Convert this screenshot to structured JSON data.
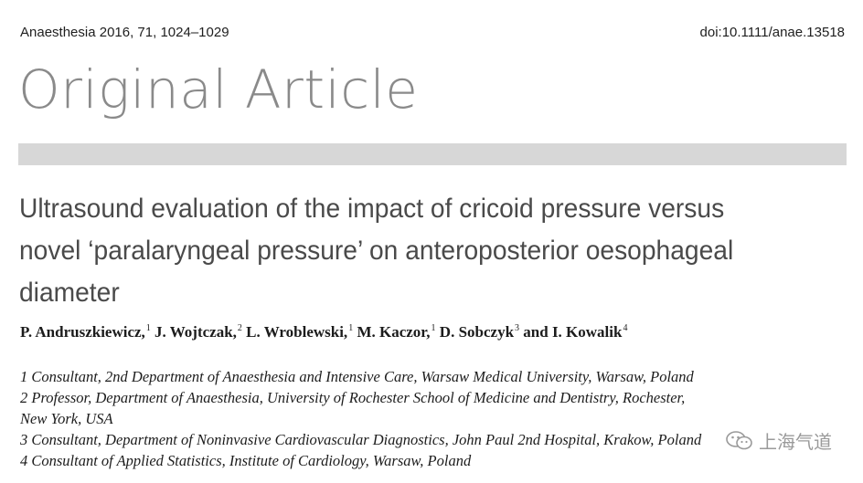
{
  "header": {
    "citation": "Anaesthesia 2016, 71, 1024–1029",
    "doi": "doi:10.1111/anae.13518"
  },
  "section_label": "Original Article",
  "title_lines": [
    "Ultrasound evaluation of the impact of cricoid pressure versus",
    "novel ‘paralaryngeal pressure’ on anteroposterior oesophageal",
    "diameter"
  ],
  "authors": [
    {
      "name": "P. Andruszkiewicz,",
      "sup": "1"
    },
    {
      "name": "J. Wojtczak,",
      "sup": "2"
    },
    {
      "name": "L. Wroblewski,",
      "sup": "1"
    },
    {
      "name": "M. Kaczor,",
      "sup": "1"
    },
    {
      "name": "D. Sobczyk",
      "sup": "3"
    },
    {
      "name": "and I. Kowalik",
      "sup": "4"
    }
  ],
  "affiliations": [
    "1 Consultant, 2nd Department of Anaesthesia and Intensive Care, Warsaw Medical University, Warsaw, Poland",
    "2 Professor, Department of Anaesthesia, University of Rochester School of Medicine and Dentistry, Rochester,",
    "New York, USA",
    "3 Consultant, Department of Noninvasive Cardiovascular Diagnostics, John Paul 2nd Hospital, Krakow, Poland",
    "4 Consultant of Applied Statistics, Institute of Cardiology, Warsaw, Poland"
  ],
  "watermark": {
    "text": "上海气道",
    "icon": "wechat-icon"
  }
}
